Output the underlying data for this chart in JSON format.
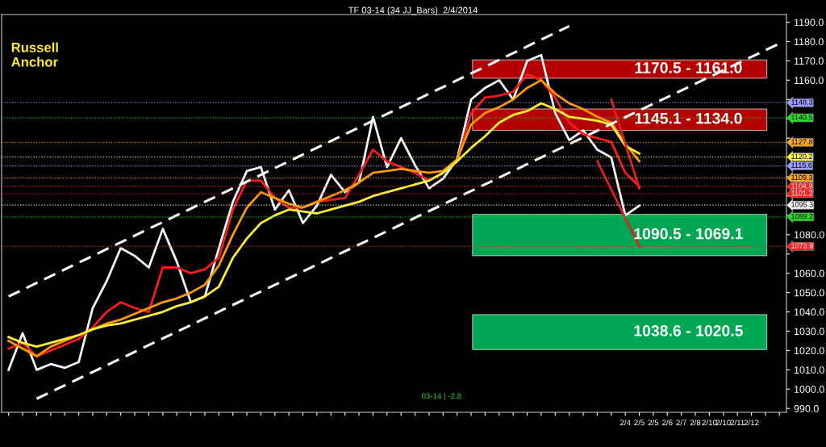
{
  "chart_data": {
    "type": "line",
    "title": "TF 03-14 (34 JJ_Bars)  2/4/2014",
    "categories": [
      null,
      null,
      null,
      null,
      null,
      null,
      null,
      null,
      null,
      null,
      null,
      null,
      null,
      null,
      null,
      null,
      null,
      null,
      null,
      null,
      null,
      null,
      null,
      null,
      null,
      null,
      null,
      null,
      null,
      null,
      null,
      null,
      null,
      null,
      null,
      null,
      null,
      null,
      null,
      null,
      null,
      null,
      null,
      null,
      "2/4",
      "2/5",
      "2/5",
      "2/6",
      "2/7",
      "2/8",
      "2/10",
      "2/10",
      "2/11",
      "2/12",
      null,
      null
    ],
    "ylim": [
      988,
      1194
    ],
    "yticks": [
      {
        "value": 990,
        "label": "990.0"
      },
      {
        "value": 1000,
        "label": "1000.0"
      },
      {
        "value": 1010,
        "label": "1010.0"
      },
      {
        "value": 1020,
        "label": "1020.0"
      },
      {
        "value": 1030,
        "label": "1030.0"
      },
      {
        "value": 1040,
        "label": "1040.0"
      },
      {
        "value": 1050,
        "label": "1050.0"
      },
      {
        "value": 1060,
        "label": "1060.0"
      },
      {
        "value": 1070,
        "label": null
      },
      {
        "value": 1080,
        "label": "1080.0"
      },
      {
        "value": 1090,
        "label": null
      },
      {
        "value": 1100,
        "label": null
      },
      {
        "value": 1110,
        "label": null
      },
      {
        "value": 1120,
        "label": null
      },
      {
        "value": 1130,
        "label": null
      },
      {
        "value": 1140,
        "label": null
      },
      {
        "value": 1150,
        "label": null
      },
      {
        "value": 1160,
        "label": "1160.0"
      },
      {
        "value": 1170,
        "label": "1170.0"
      },
      {
        "value": 1180,
        "label": "1180.0"
      },
      {
        "value": 1190,
        "label": "1190.0"
      }
    ],
    "grid": false,
    "legend": false,
    "marker": "none",
    "series": [
      {
        "color": "#f5f5ff",
        "values": [
          1010,
          1029,
          1010,
          1013,
          1011,
          1014,
          1042,
          1056,
          1073,
          1069,
          1063,
          1083,
          1066,
          1045,
          1048,
          1073,
          1097,
          1113,
          1115,
          1093,
          1103,
          1086,
          1095,
          1111,
          1102,
          1107,
          1141,
          1115,
          1130,
          1116,
          1104,
          1109,
          1119,
          1150,
          1156,
          1160,
          1150,
          1170,
          1173,
          1143,
          1129,
          1134,
          1124,
          1120,
          1090,
          1095,
          null,
          null,
          null,
          null,
          null,
          null,
          null,
          null,
          null,
          null
        ]
      },
      {
        "color": "#ff1a1a",
        "values": [
          1021,
          1024,
          1017,
          1020,
          1023,
          1026,
          1032,
          1040,
          1045,
          1042,
          1040,
          1063,
          1063,
          1060,
          1062,
          1068,
          1093,
          1108,
          1108,
          1099,
          1094,
          1094,
          1097,
          1098,
          1099,
          1111,
          1124,
          1118,
          1115,
          1112,
          1108,
          1112,
          1118,
          1143,
          1151,
          1152,
          1154,
          1163,
          1160,
          1151,
          1138,
          1132,
          1130,
          1128,
          1112,
          1105,
          null,
          null,
          null,
          null,
          null,
          null,
          null,
          null,
          null,
          null
        ]
      },
      {
        "color": "#ff9900",
        "values": [
          1025,
          1021,
          1017,
          1022,
          1025,
          1028,
          1031,
          1034,
          1036,
          1039,
          1042,
          1045,
          1047,
          1050,
          1054,
          1064,
          1080,
          1094,
          1102,
          1099,
          1096,
          1094,
          1097,
          1100,
          1103,
          1107,
          1112,
          1113,
          1114,
          1113,
          1112,
          1113,
          1119,
          1137,
          1143,
          1146,
          1150,
          1156,
          1160,
          1153,
          1148,
          1145,
          1141,
          1138,
          1127,
          1118,
          null,
          null,
          null,
          null,
          null,
          null,
          null,
          null,
          null,
          null
        ]
      },
      {
        "color": "#ffee33",
        "values": [
          1027,
          1024,
          1022,
          1024,
          1026,
          1028,
          1031,
          1033,
          1034,
          1036,
          1038,
          1040,
          1043,
          1045,
          1048,
          1053,
          1068,
          1078,
          1086,
          1090,
          1093,
          1092,
          1091,
          1093,
          1095,
          1097,
          1100,
          1102,
          1104,
          1106,
          1108,
          1112,
          1118,
          1125,
          1131,
          1138,
          1142,
          1144,
          1148,
          1145,
          1141,
          1140,
          1139,
          1137,
          1126,
          1122,
          null,
          null,
          null,
          null,
          null,
          null,
          null,
          null,
          null,
          null
        ]
      },
      {
        "color": "#ffffff",
        "line_style": "dashed",
        "values": [
          1048,
          null,
          null,
          null,
          null,
          null,
          null,
          null,
          null,
          null,
          null,
          null,
          null,
          null,
          null,
          null,
          null,
          null,
          null,
          null,
          null,
          null,
          null,
          null,
          null,
          null,
          null,
          null,
          null,
          null,
          null,
          null,
          null,
          null,
          null,
          null,
          null,
          null,
          null,
          null,
          1188,
          null,
          null,
          null,
          null,
          null,
          null,
          null,
          null,
          null,
          null,
          null,
          null,
          null,
          null,
          null
        ]
      },
      {
        "color": "#ffffff",
        "line_style": "dashed",
        "values": [
          null,
          null,
          995,
          null,
          null,
          null,
          null,
          null,
          null,
          null,
          null,
          null,
          null,
          null,
          null,
          null,
          null,
          null,
          null,
          null,
          null,
          null,
          null,
          null,
          null,
          null,
          null,
          null,
          null,
          null,
          null,
          null,
          null,
          null,
          null,
          null,
          null,
          null,
          null,
          null,
          null,
          null,
          null,
          null,
          null,
          null,
          null,
          null,
          null,
          null,
          null,
          null,
          null,
          null,
          null,
          1179
        ]
      },
      {
        "color": "#e02020",
        "values": [
          null,
          null,
          null,
          null,
          null,
          null,
          null,
          null,
          null,
          null,
          null,
          null,
          null,
          null,
          null,
          null,
          null,
          null,
          null,
          null,
          null,
          null,
          null,
          null,
          null,
          null,
          null,
          null,
          null,
          null,
          null,
          null,
          null,
          null,
          null,
          null,
          null,
          null,
          null,
          null,
          null,
          null,
          1118,
          null,
          null,
          1074,
          null,
          null,
          null,
          null,
          null,
          null,
          null,
          null,
          null,
          null
        ]
      },
      {
        "color": "#e02020",
        "values": [
          null,
          null,
          null,
          null,
          null,
          null,
          null,
          null,
          null,
          null,
          null,
          null,
          null,
          null,
          null,
          null,
          null,
          null,
          null,
          null,
          null,
          null,
          null,
          null,
          null,
          null,
          null,
          null,
          null,
          null,
          null,
          null,
          null,
          null,
          null,
          null,
          null,
          null,
          null,
          null,
          null,
          null,
          null,
          1150,
          null,
          1104,
          null,
          null,
          null,
          null,
          null,
          null,
          null,
          null,
          null,
          null
        ]
      }
    ],
    "bands": [
      {
        "axis": "y",
        "from": 1161.0,
        "to": 1170.5,
        "label": "1170.5 - 1161.0",
        "color": "#b30000"
      },
      {
        "axis": "y",
        "from": 1134.0,
        "to": 1145.1,
        "label": "1145.1 - 1134.0",
        "color": "#b30000"
      },
      {
        "axis": "y",
        "from": 1069.1,
        "to": 1090.5,
        "label": "1090.5 - 1069.1",
        "color": "#00a651"
      },
      {
        "axis": "y",
        "from": 1020.5,
        "to": 1038.6,
        "label": "1038.6 - 1020.5",
        "color": "#00a651"
      }
    ],
    "ref_lines": [
      {
        "axis": "y",
        "value": 1148.3,
        "label": "1148.3",
        "color": "#9999ff",
        "line_style": "dotted"
      },
      {
        "axis": "y",
        "value": 1140.5,
        "label": "1140.5",
        "color": "#22dd22",
        "line_style": "dotted"
      },
      {
        "axis": "y",
        "value": 1127.8,
        "label": "1127.8",
        "color": "#f5a623",
        "line_style": "dotted"
      },
      {
        "axis": "y",
        "value": 1120.2,
        "label": "1120.2",
        "color": "#ffff33",
        "line_style": "dotted"
      },
      {
        "axis": "y",
        "value": 1115.6,
        "label": "1115.6",
        "color": "#9999ff",
        "line_style": "dotted"
      },
      {
        "axis": "y",
        "value": 1109.3,
        "label": "1109.3",
        "color": "#f5a623",
        "line_style": "dotted"
      },
      {
        "axis": "y",
        "value": 1104.9,
        "label": "1104.9",
        "color": "#ff2222",
        "line_style": "dotted"
      },
      {
        "axis": "y",
        "value": 1101.2,
        "label": "1101.2",
        "color": "#ff2222",
        "line_style": "dotted"
      },
      {
        "axis": "y",
        "value": 1095.3,
        "label": "1095.3",
        "color": "#ffffff",
        "line_style": "dotted"
      },
      {
        "axis": "y",
        "value": 1089.2,
        "label": "1089.2",
        "color": "#22dd22",
        "line_style": "dotted"
      },
      {
        "axis": "y",
        "value": 1073.9,
        "label": "1073.9",
        "color": "#ff2222",
        "line_style": "dotted"
      }
    ],
    "annotations": [
      "Russell\nAnchor",
      "03-14 | -2.8"
    ]
  }
}
